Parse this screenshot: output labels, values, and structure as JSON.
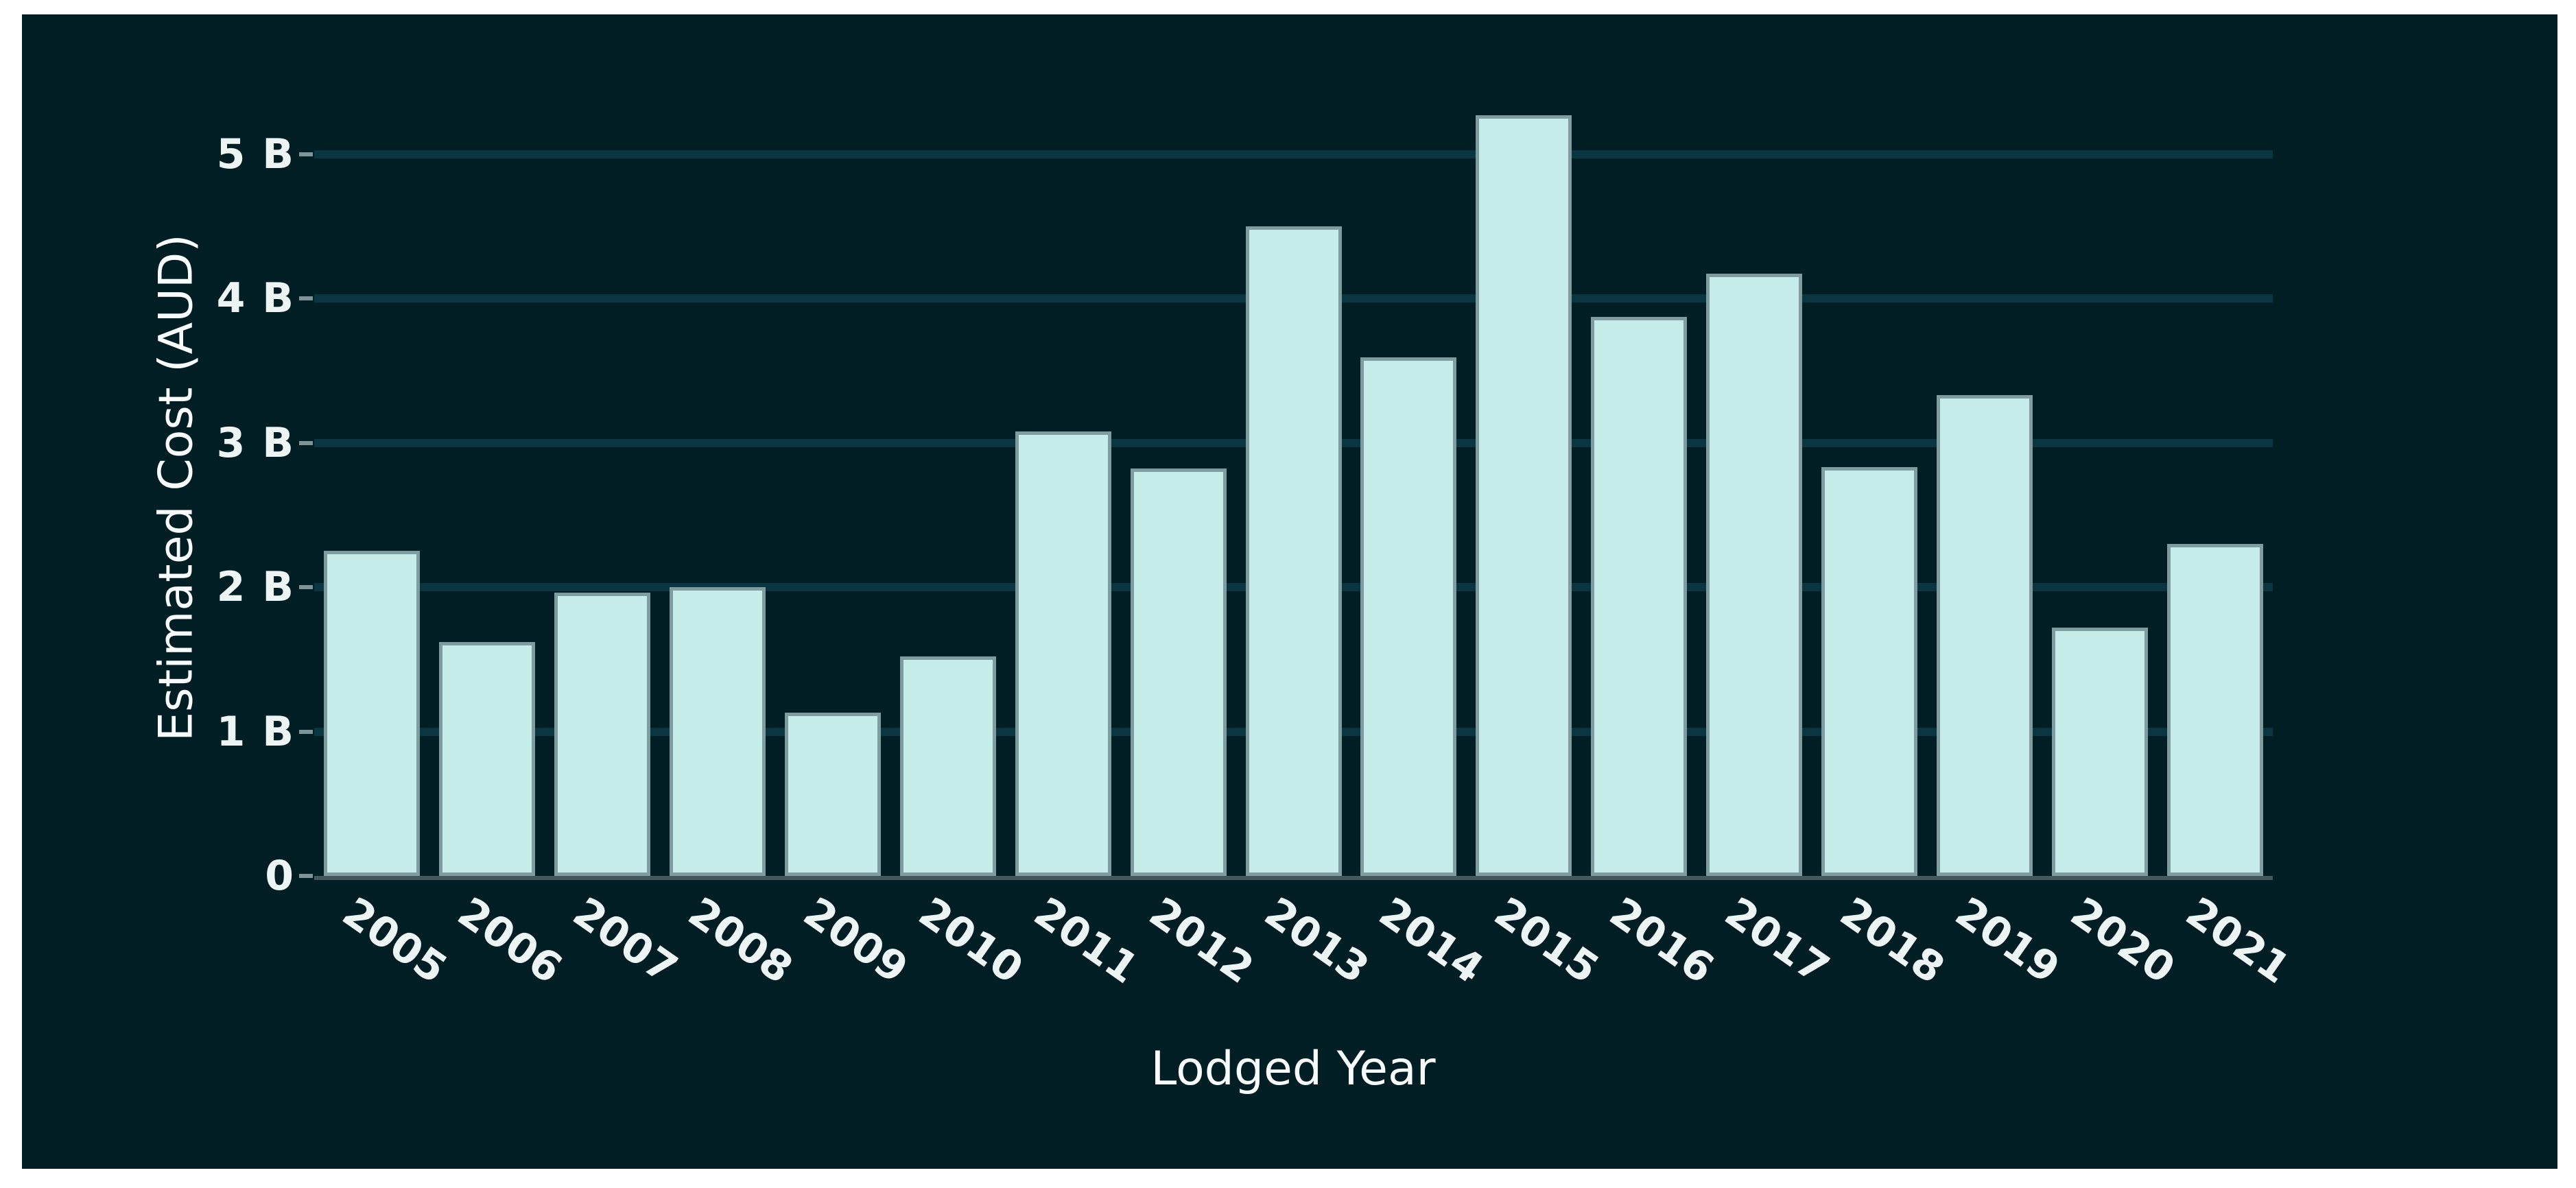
{
  "page": {
    "background": "#ffffff"
  },
  "chart": {
    "background": "#021e25",
    "bar_fill": "#c6ece9",
    "bar_edge": "#7f9da0",
    "gridline_color": "#093641",
    "baseline_color": "#44595c",
    "tick_mark_color": "#7e9499",
    "tick_text_color": "#edf4f4",
    "title_text_color": "#f7fbfb"
  },
  "chart_data": {
    "type": "bar",
    "title": "",
    "xlabel": "Lodged Year",
    "ylabel": "Estimated Cost (AUD)",
    "categories": [
      "2005",
      "2006",
      "2007",
      "2008",
      "2009",
      "2010",
      "2011",
      "2012",
      "2013",
      "2014",
      "2015",
      "2016",
      "2017",
      "2018",
      "2019",
      "2020",
      "2021"
    ],
    "values": [
      2.25,
      1.62,
      1.96,
      2.0,
      1.13,
      1.52,
      3.08,
      2.82,
      4.5,
      3.59,
      5.27,
      3.87,
      4.17,
      2.83,
      3.33,
      1.72,
      2.3
    ],
    "unit": "B AUD",
    "ytick_values": [
      0,
      1,
      2,
      3,
      4,
      5
    ],
    "ytick_labels": [
      "0",
      "1 B",
      "2 B",
      "3 B",
      "4 B",
      "5 B"
    ],
    "ylim": [
      0,
      5.6
    ],
    "grid": true,
    "legend_position": "none",
    "x_tick_rotation_deg": 35
  }
}
